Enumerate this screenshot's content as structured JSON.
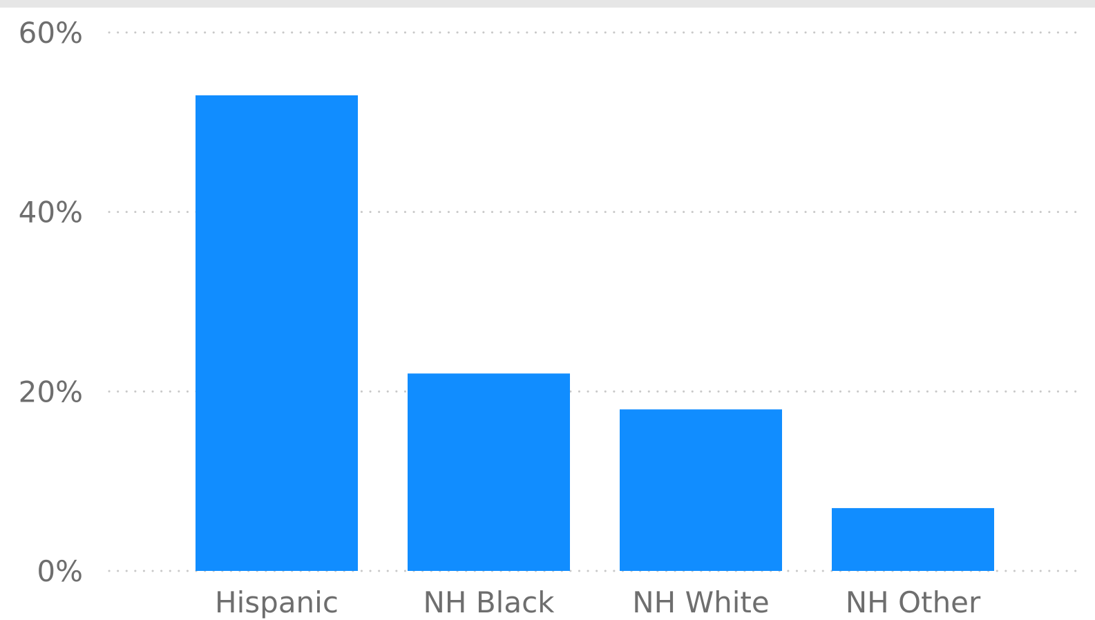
{
  "chart_data": {
    "type": "bar",
    "categories": [
      "Hispanic",
      "NH Black",
      "NH White",
      "NH Other"
    ],
    "values": [
      53,
      22,
      18,
      7
    ],
    "y_ticks": [
      0,
      20,
      40,
      60
    ],
    "y_tick_labels": [
      "0%",
      "20%",
      "40%",
      "60%"
    ],
    "ylim": [
      0,
      60
    ],
    "grid": "dotted horizontal",
    "title": "",
    "xlabel": "",
    "ylabel": ""
  },
  "colors": {
    "bar": "#118dff",
    "grid": "#c8c8c8",
    "text": "#6e6e6e",
    "top_strip": "#e6e6e6"
  }
}
